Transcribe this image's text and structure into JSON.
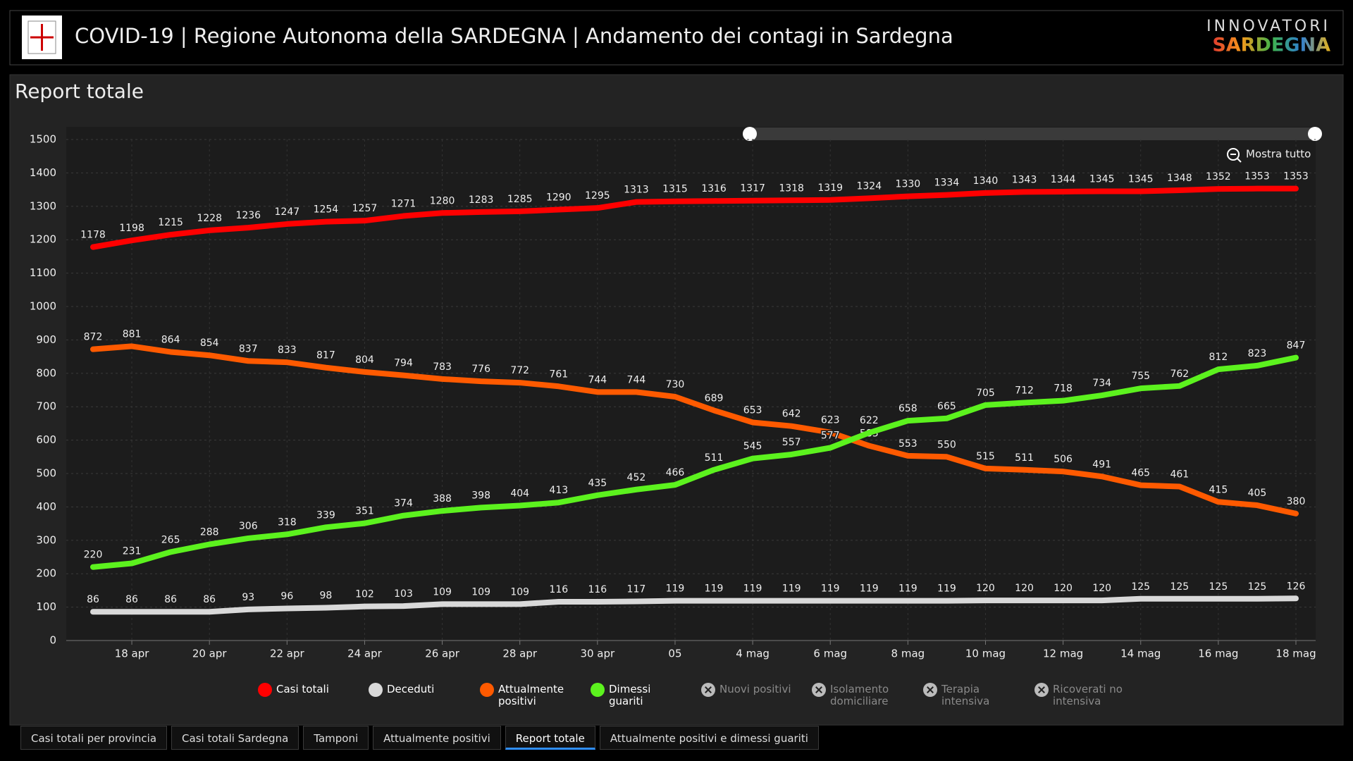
{
  "header": {
    "title": "COVID-19 | Regione Autonoma della SARDEGNA | Andamento dei contagi in Sardegna",
    "logo_top": "INNOVATORI",
    "logo_bottom": "SARDEGNA"
  },
  "panel": {
    "title": "Report totale",
    "zoom_button": "Mostra tutto"
  },
  "tabs": {
    "items": [
      "Casi totali per provincia",
      "Casi totali Sardegna",
      "Tamponi",
      "Attualmente positivi",
      "Report totale",
      "Attualmente positivi e dimessi guariti"
    ],
    "active": 4
  },
  "chart_data": {
    "type": "line",
    "categories": [
      null,
      "18 apr",
      null,
      "20 apr",
      null,
      "22 apr",
      null,
      "24 apr",
      null,
      "26 apr",
      null,
      "28 apr",
      null,
      "30 apr",
      null,
      "05",
      null,
      "4 mag",
      null,
      "6 mag",
      null,
      "8 mag",
      null,
      "10 mag",
      null,
      "12 mag",
      null,
      "14 mag",
      null,
      "16 mag",
      null,
      "18 mag"
    ],
    "series": [
      {
        "name": "Casi totali",
        "color": "#ff0000",
        "values": [
          1178,
          1198,
          1215,
          1228,
          1236,
          1247,
          1254,
          1257,
          1271,
          1280,
          1283,
          1285,
          1290,
          1295,
          1313,
          1315,
          1316,
          1317,
          1318,
          1319,
          1324,
          1330,
          1334,
          1340,
          1343,
          1344,
          1345,
          1345,
          1348,
          1352,
          1353,
          1353
        ]
      },
      {
        "name": "Deceduti",
        "color": "#d9d9d9",
        "values": [
          86,
          86,
          86,
          86,
          93,
          96,
          98,
          102,
          103,
          109,
          109,
          109,
          116,
          116,
          117,
          119,
          119,
          119,
          119,
          119,
          119,
          119,
          119,
          120,
          120,
          120,
          120,
          125,
          125,
          125,
          125,
          126
        ]
      },
      {
        "name": "Attualmente positivi",
        "color": "#ff5a00",
        "values": [
          872,
          881,
          864,
          854,
          837,
          833,
          817,
          804,
          794,
          783,
          776,
          772,
          761,
          744,
          744,
          730,
          689,
          653,
          642,
          623,
          583,
          553,
          550,
          515,
          511,
          506,
          491,
          465,
          461,
          415,
          405,
          380
        ]
      },
      {
        "name": "Dimessi guariti",
        "color": "#5cf21e",
        "values": [
          220,
          231,
          265,
          288,
          306,
          318,
          339,
          351,
          374,
          388,
          398,
          404,
          413,
          435,
          452,
          466,
          511,
          545,
          557,
          577,
          622,
          658,
          665,
          705,
          712,
          718,
          734,
          755,
          762,
          812,
          823,
          847
        ]
      }
    ],
    "hidden_series": [
      "Nuovi positivi",
      "Isolamento domiciliare",
      "Terapia intensiva",
      "Ricoverati no intensiva"
    ],
    "ylim": [
      0,
      1500
    ],
    "yticks": [
      0,
      100,
      200,
      300,
      400,
      500,
      600,
      700,
      800,
      900,
      1000,
      1100,
      1200,
      1300,
      1400,
      1500
    ],
    "grid": true
  }
}
